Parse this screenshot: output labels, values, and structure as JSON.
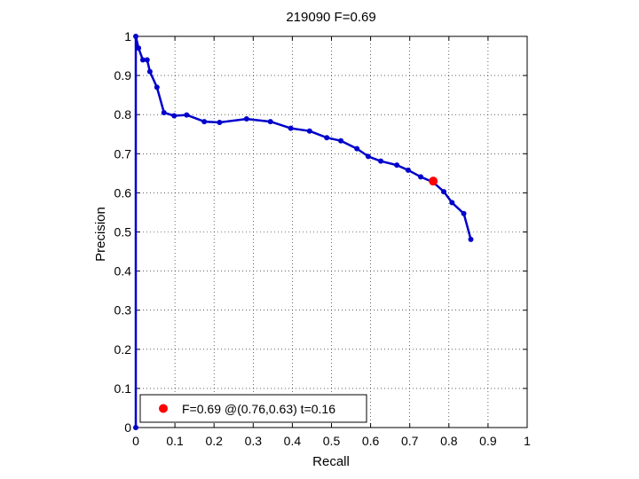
{
  "chart_data": {
    "type": "line",
    "title": "219090 F=0.69",
    "xlabel": "Recall",
    "ylabel": "Precision",
    "xlim": [
      0,
      1
    ],
    "ylim": [
      0,
      1
    ],
    "xticks": [
      "0",
      "0.1",
      "0.2",
      "0.3",
      "0.4",
      "0.5",
      "0.6",
      "0.7",
      "0.8",
      "0.9",
      "1"
    ],
    "yticks": [
      "0",
      "0.1",
      "0.2",
      "0.3",
      "0.4",
      "0.5",
      "0.6",
      "0.7",
      "0.8",
      "0.9",
      "1"
    ],
    "grid": true,
    "legend_position": "bottom-left",
    "series": [
      {
        "color": "#0000cc",
        "x": [
          0.0,
          0.0,
          0.007,
          0.018,
          0.029,
          0.036,
          0.054,
          0.072,
          0.098,
          0.13,
          0.175,
          0.214,
          0.283,
          0.344,
          0.396,
          0.444,
          0.488,
          0.524,
          0.565,
          0.594,
          0.626,
          0.667,
          0.696,
          0.728,
          0.76,
          0.787,
          0.808,
          0.838,
          0.856
        ],
        "y": [
          0.0,
          1.0,
          0.97,
          0.94,
          0.94,
          0.91,
          0.87,
          0.805,
          0.797,
          0.799,
          0.782,
          0.78,
          0.789,
          0.782,
          0.765,
          0.758,
          0.741,
          0.733,
          0.713,
          0.693,
          0.681,
          0.671,
          0.658,
          0.641,
          0.627,
          0.603,
          0.575,
          0.547,
          0.481
        ]
      }
    ],
    "highlight_point": {
      "x": 0.76,
      "y": 0.63,
      "color": "#ff0000",
      "label": "F=0.69 @(0.76,0.63) t=0.16"
    }
  }
}
